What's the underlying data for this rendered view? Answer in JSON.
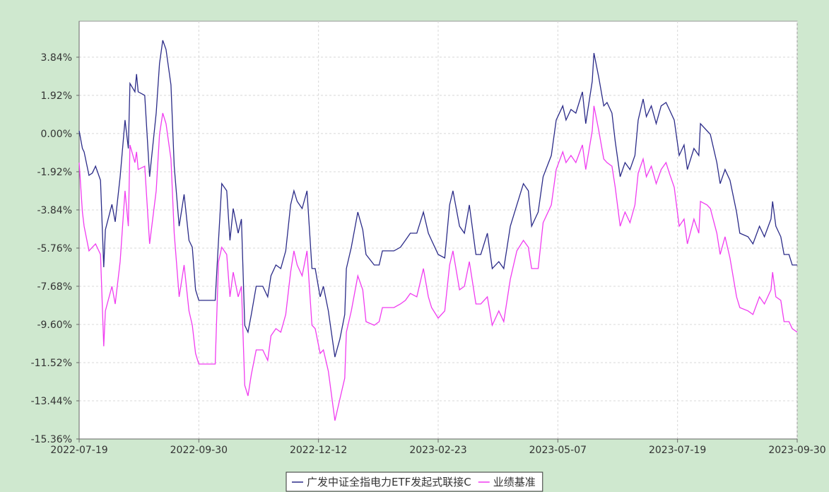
{
  "chart_data": {
    "type": "line",
    "x": [
      "2022-07-19",
      "2022-07-21",
      "2022-07-22",
      "2022-07-25",
      "2022-07-27",
      "2022-07-29",
      "2022-08-01",
      "2022-08-03",
      "2022-08-04",
      "2022-08-08",
      "2022-08-10",
      "2022-08-13",
      "2022-08-16",
      "2022-08-18",
      "2022-08-19",
      "2022-08-22",
      "2022-08-23",
      "2022-08-24",
      "2022-08-28",
      "2022-08-31",
      "2022-09-04",
      "2022-09-06",
      "2022-09-08",
      "2022-09-10",
      "2022-09-13",
      "2022-09-15",
      "2022-09-18",
      "2022-09-21",
      "2022-09-24",
      "2022-09-26",
      "2022-09-28",
      "2022-09-30",
      "2022-10-10",
      "2022-10-12",
      "2022-10-14",
      "2022-10-17",
      "2022-10-19",
      "2022-10-21",
      "2022-10-24",
      "2022-10-26",
      "2022-10-28",
      "2022-10-30",
      "2022-11-01",
      "2022-11-04",
      "2022-11-08",
      "2022-11-11",
      "2022-11-13",
      "2022-11-16",
      "2022-11-19",
      "2022-11-22",
      "2022-11-25",
      "2022-11-27",
      "2022-11-29",
      "2022-12-02",
      "2022-12-05",
      "2022-12-08",
      "2022-12-10",
      "2022-12-13",
      "2022-12-15",
      "2022-12-18",
      "2022-12-22",
      "2022-12-25",
      "2022-12-28",
      "2022-12-29",
      "2023-01-01",
      "2023-01-05",
      "2023-01-08",
      "2023-01-10",
      "2023-01-15",
      "2023-01-18",
      "2023-01-20",
      "2023-01-27",
      "2023-01-31",
      "2023-02-03",
      "2023-02-06",
      "2023-02-10",
      "2023-02-14",
      "2023-02-17",
      "2023-02-19",
      "2023-02-23",
      "2023-02-27",
      "2023-03-02",
      "2023-03-04",
      "2023-03-08",
      "2023-03-11",
      "2023-03-14",
      "2023-03-18",
      "2023-03-21",
      "2023-03-25",
      "2023-03-28",
      "2023-04-01",
      "2023-04-04",
      "2023-04-08",
      "2023-04-12",
      "2023-04-16",
      "2023-04-19",
      "2023-04-21",
      "2023-04-25",
      "2023-04-28",
      "2023-05-03",
      "2023-05-06",
      "2023-05-10",
      "2023-05-12",
      "2023-05-15",
      "2023-05-18",
      "2023-05-22",
      "2023-05-24",
      "2023-05-28",
      "2023-05-29",
      "2023-06-01",
      "2023-06-04",
      "2023-06-06",
      "2023-06-09",
      "2023-06-11",
      "2023-06-14",
      "2023-06-17",
      "2023-06-20",
      "2023-06-23",
      "2023-06-25",
      "2023-06-28",
      "2023-06-30",
      "2023-07-03",
      "2023-07-06",
      "2023-07-09",
      "2023-07-12",
      "2023-07-14",
      "2023-07-17",
      "2023-07-20",
      "2023-07-23",
      "2023-07-25",
      "2023-07-29",
      "2023-08-01",
      "2023-08-02",
      "2023-08-06",
      "2023-08-08",
      "2023-08-12",
      "2023-08-14",
      "2023-08-17",
      "2023-08-20",
      "2023-08-24",
      "2023-08-26",
      "2023-08-31",
      "2023-09-03",
      "2023-09-07",
      "2023-09-10",
      "2023-09-14",
      "2023-09-15",
      "2023-09-17",
      "2023-09-20",
      "2023-09-22",
      "2023-09-25",
      "2023-09-27",
      "2023-09-30"
    ],
    "series": [
      {
        "name": "广发中证全指电力ETF发起式联接C",
        "color": "#2b2b88",
        "values": [
          0.14,
          -0.75,
          -0.92,
          -2.1,
          -1.99,
          -1.64,
          -2.35,
          -6.72,
          -4.84,
          -3.56,
          -4.44,
          -2.17,
          0.68,
          -0.75,
          2.52,
          2.1,
          2.99,
          2.1,
          1.92,
          -2.17,
          1.03,
          3.52,
          4.69,
          4.23,
          2.45,
          -1.64,
          -4.66,
          -3.06,
          -5.37,
          -5.72,
          -7.86,
          -8.39,
          -8.39,
          -5.37,
          -2.52,
          -2.88,
          -5.37,
          -3.77,
          -5.01,
          -4.3,
          -9.64,
          -9.99,
          -9.1,
          -7.68,
          -7.68,
          -8.21,
          -7.15,
          -6.61,
          -6.79,
          -5.9,
          -3.59,
          -2.88,
          -3.41,
          -3.77,
          -2.88,
          -6.79,
          -6.79,
          -8.21,
          -7.68,
          -8.92,
          -11.24,
          -10.35,
          -9.1,
          -6.79,
          -5.72,
          -3.95,
          -4.84,
          -6.08,
          -6.61,
          -6.61,
          -5.9,
          -5.9,
          -5.72,
          -5.37,
          -5.01,
          -5.01,
          -3.95,
          -5.01,
          -5.37,
          -6.08,
          -6.26,
          -3.59,
          -2.88,
          -4.66,
          -5.01,
          -3.59,
          -6.08,
          -6.08,
          -5.01,
          -6.79,
          -6.44,
          -6.79,
          -4.66,
          -3.59,
          -2.52,
          -2.88,
          -4.66,
          -3.95,
          -2.17,
          -1.1,
          0.68,
          1.39,
          0.68,
          1.21,
          1.03,
          2.1,
          0.5,
          2.63,
          4.05,
          2.81,
          1.39,
          1.56,
          1.03,
          -0.39,
          -2.17,
          -1.46,
          -1.81,
          -1.1,
          0.68,
          1.74,
          0.85,
          1.39,
          0.5,
          1.39,
          1.56,
          1.21,
          0.68,
          -1.1,
          -0.57,
          -1.81,
          -0.75,
          -1.1,
          0.5,
          0.14,
          -0.04,
          -1.46,
          -2.52,
          -1.81,
          -2.35,
          -3.95,
          -5.01,
          -5.19,
          -5.55,
          -4.66,
          -5.19,
          -4.3,
          -3.41,
          -4.66,
          -5.19,
          -6.08,
          -6.08,
          -6.61,
          -6.61
        ]
      },
      {
        "name": "业绩基准",
        "color": "#f03cf0",
        "values": [
          -1.46,
          -3.95,
          -4.66,
          -5.9,
          -5.72,
          -5.55,
          -6.08,
          -10.7,
          -8.92,
          -7.68,
          -8.57,
          -6.44,
          -2.88,
          -4.66,
          -0.57,
          -1.46,
          -0.92,
          -1.81,
          -1.64,
          -5.55,
          -2.88,
          -0.04,
          1.03,
          0.5,
          -1.28,
          -5.01,
          -8.21,
          -6.61,
          -8.92,
          -9.64,
          -11.06,
          -11.59,
          -11.59,
          -6.44,
          -5.72,
          -6.08,
          -8.21,
          -6.97,
          -8.21,
          -7.68,
          -12.66,
          -13.19,
          -12.12,
          -10.88,
          -10.88,
          -11.41,
          -10.17,
          -9.81,
          -9.99,
          -9.1,
          -6.97,
          -5.9,
          -6.61,
          -7.15,
          -5.9,
          -9.64,
          -9.81,
          -11.06,
          -10.88,
          -11.95,
          -14.44,
          -13.37,
          -12.3,
          -9.99,
          -8.92,
          -7.15,
          -7.86,
          -9.46,
          -9.64,
          -9.46,
          -8.75,
          -8.75,
          -8.57,
          -8.39,
          -8.04,
          -8.21,
          -6.79,
          -8.21,
          -8.75,
          -9.28,
          -8.92,
          -6.61,
          -5.9,
          -7.86,
          -7.68,
          -6.44,
          -8.57,
          -8.57,
          -8.21,
          -9.64,
          -8.92,
          -9.46,
          -7.32,
          -5.9,
          -5.37,
          -5.72,
          -6.79,
          -6.79,
          -4.48,
          -3.59,
          -1.81,
          -0.92,
          -1.46,
          -1.1,
          -1.46,
          -0.57,
          -1.81,
          0.14,
          1.39,
          0.14,
          -1.28,
          -1.46,
          -1.64,
          -2.7,
          -4.66,
          -3.95,
          -4.48,
          -3.59,
          -1.99,
          -1.28,
          -2.17,
          -1.64,
          -2.52,
          -1.81,
          -1.46,
          -1.99,
          -2.7,
          -4.66,
          -4.3,
          -5.55,
          -4.3,
          -5.01,
          -3.41,
          -3.59,
          -3.77,
          -5.01,
          -6.08,
          -5.19,
          -6.26,
          -8.21,
          -8.75,
          -8.92,
          -9.1,
          -8.21,
          -8.57,
          -7.86,
          -6.97,
          -8.21,
          -8.39,
          -9.46,
          -9.46,
          -9.81,
          -9.99
        ]
      }
    ],
    "xlim": [
      "2022-07-19",
      "2023-09-30"
    ],
    "xticks": [
      "2022-07-19",
      "2022-09-30",
      "2022-12-12",
      "2023-02-23",
      "2023-05-07",
      "2023-07-19",
      "2023-09-30"
    ],
    "ylim": [
      -15.36,
      5.65
    ],
    "yticks": [
      {
        "value": -15.36,
        "label": "-15.36%"
      },
      {
        "value": -13.44,
        "label": "-13.44%"
      },
      {
        "value": -11.52,
        "label": "-11.52%"
      },
      {
        "value": -9.6,
        "label": "-9.60%"
      },
      {
        "value": -7.68,
        "label": "-7.68%"
      },
      {
        "value": -5.76,
        "label": "-5.76%"
      },
      {
        "value": -3.84,
        "label": "-3.84%"
      },
      {
        "value": -1.92,
        "label": "-1.92%"
      },
      {
        "value": 0,
        "label": "0.00%"
      },
      {
        "value": 1.92,
        "label": "1.92%"
      },
      {
        "value": 3.84,
        "label": "3.84%"
      }
    ],
    "grid": true,
    "legend": "bottom"
  }
}
